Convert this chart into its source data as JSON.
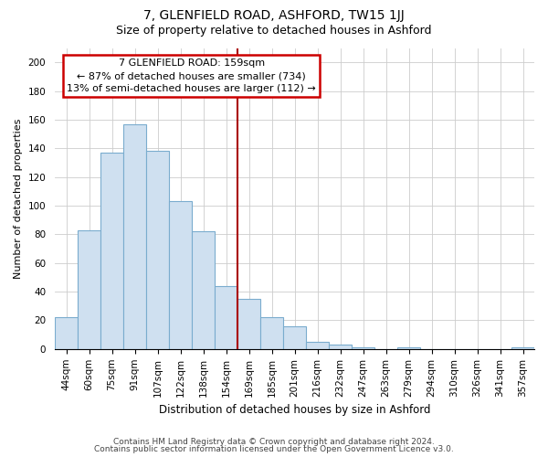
{
  "title1": "7, GLENFIELD ROAD, ASHFORD, TW15 1JJ",
  "title2": "Size of property relative to detached houses in Ashford",
  "xlabel": "Distribution of detached houses by size in Ashford",
  "ylabel": "Number of detached properties",
  "bar_labels": [
    "44sqm",
    "60sqm",
    "75sqm",
    "91sqm",
    "107sqm",
    "122sqm",
    "138sqm",
    "154sqm",
    "169sqm",
    "185sqm",
    "201sqm",
    "216sqm",
    "232sqm",
    "247sqm",
    "263sqm",
    "279sqm",
    "294sqm",
    "310sqm",
    "326sqm",
    "341sqm",
    "357sqm"
  ],
  "bar_values": [
    22,
    83,
    137,
    157,
    138,
    103,
    82,
    44,
    35,
    22,
    16,
    5,
    3,
    1,
    0,
    1,
    0,
    0,
    0,
    0,
    1
  ],
  "bar_color": "#cfe0f0",
  "bar_edge_color": "#7aacce",
  "annotation_title": "7 GLENFIELD ROAD: 159sqm",
  "annotation_line1": "← 87% of detached houses are smaller (734)",
  "annotation_line2": "13% of semi-detached houses are larger (112) →",
  "annotation_box_color": "#ffffff",
  "annotation_box_edge": "#cc0000",
  "vline_color": "#aa0000",
  "vline_x": 7.5,
  "ylim": [
    0,
    210
  ],
  "yticks": [
    0,
    20,
    40,
    60,
    80,
    100,
    120,
    140,
    160,
    180,
    200
  ],
  "footer1": "Contains HM Land Registry data © Crown copyright and database right 2024.",
  "footer2": "Contains public sector information licensed under the Open Government Licence v3.0.",
  "bg_color": "#ffffff",
  "grid_color": "#cccccc",
  "title1_fontsize": 10,
  "title2_fontsize": 9,
  "xlabel_fontsize": 8.5,
  "ylabel_fontsize": 8,
  "tick_fontsize": 7.5,
  "annotation_fontsize": 8,
  "footer_fontsize": 6.5
}
